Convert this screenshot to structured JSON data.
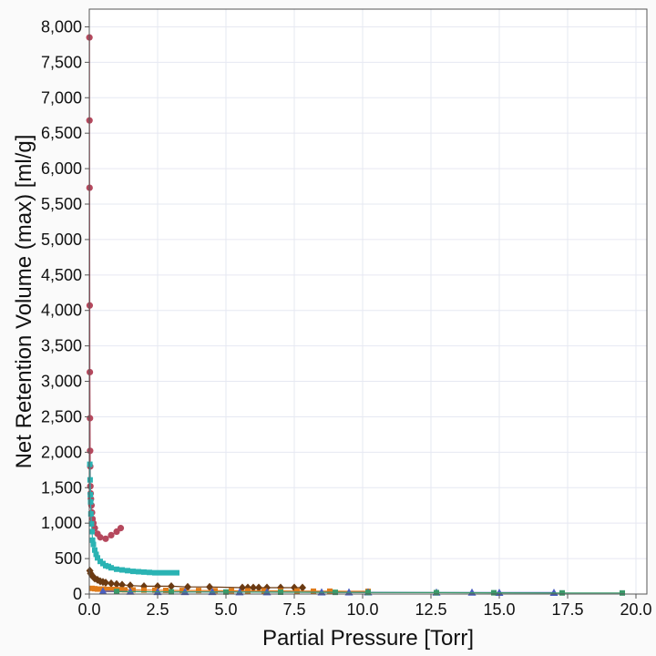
{
  "chart_data": {
    "type": "scatter",
    "xlabel": "Partial Pressure [Torr]",
    "ylabel": "Net Retention Volume (max) [ml/g]",
    "xlim": [
      0,
      20.4
    ],
    "ylim": [
      0,
      8250
    ],
    "x_ticks": [
      0,
      2.5,
      5,
      7.5,
      10,
      12.5,
      15,
      17.5,
      20
    ],
    "x_tick_labels": [
      "0.0",
      "2.5",
      "5.0",
      "7.5",
      "10.0",
      "12.5",
      "15.0",
      "17.5",
      "20.0"
    ],
    "y_ticks": [
      0,
      500,
      1000,
      1500,
      2000,
      2500,
      3000,
      3500,
      4000,
      4500,
      5000,
      5500,
      6000,
      6500,
      7000,
      7500,
      8000
    ],
    "y_tick_labels": [
      "0",
      "500",
      "1,000",
      "1,500",
      "2,000",
      "2,500",
      "3,000",
      "3,500",
      "4,000",
      "4,500",
      "5,000",
      "5,500",
      "6,000",
      "6,500",
      "7,000",
      "7,500",
      "8,000"
    ],
    "grid": true,
    "legend": "none",
    "series": [
      {
        "color": "#b5485d",
        "marker": "circle",
        "x": [
          0.005,
          0.007,
          0.01,
          0.015,
          0.02,
          0.025,
          0.03,
          0.035,
          0.04,
          0.05,
          0.06,
          0.08,
          0.1,
          0.12,
          0.15,
          0.2,
          0.3,
          0.4,
          0.6,
          0.8,
          1.0,
          1.15
        ],
        "y": [
          7850,
          6680,
          5730,
          4070,
          3130,
          2480,
          2020,
          1800,
          1520,
          1420,
          1340,
          1250,
          1150,
          1060,
          1000,
          930,
          850,
          800,
          780,
          830,
          880,
          930
        ]
      },
      {
        "color": "#2ab3b3",
        "marker": "square",
        "x": [
          0.02,
          0.03,
          0.04,
          0.05,
          0.06,
          0.08,
          0.1,
          0.12,
          0.15,
          0.2,
          0.25,
          0.3,
          0.4,
          0.5,
          0.6,
          0.7,
          0.8,
          1.0,
          1.2,
          1.4,
          1.6,
          1.8,
          2.0,
          2.2,
          2.4,
          2.6,
          2.8,
          3.0,
          3.2
        ],
        "y": [
          1830,
          1610,
          1400,
          1300,
          1130,
          990,
          880,
          760,
          700,
          620,
          560,
          510,
          460,
          430,
          400,
          390,
          370,
          350,
          340,
          330,
          320,
          315,
          310,
          305,
          300,
          300,
          300,
          300,
          300
        ]
      },
      {
        "color": "#6b3a12",
        "marker": "diamond",
        "x": [
          0.02,
          0.05,
          0.1,
          0.15,
          0.2,
          0.3,
          0.4,
          0.5,
          0.6,
          0.8,
          1.0,
          1.2,
          1.5,
          2.0,
          2.5,
          3.0,
          3.6,
          4.4,
          5.6,
          5.8,
          6.0,
          6.2,
          6.5,
          7.0,
          7.5,
          7.8
        ],
        "y": [
          330,
          290,
          260,
          240,
          220,
          200,
          180,
          170,
          160,
          150,
          140,
          130,
          120,
          110,
          110,
          110,
          100,
          100,
          90,
          90,
          90,
          90,
          90,
          90,
          90,
          90
        ]
      },
      {
        "color": "#e07b1a",
        "marker": "square",
        "x": [
          0.1,
          0.2,
          0.3,
          0.5,
          0.7,
          0.9,
          1.1,
          1.3,
          1.6,
          2.0,
          2.4,
          2.8,
          3.4,
          4.0,
          4.6,
          5.2,
          5.8,
          6.4,
          7.0,
          7.6,
          8.2,
          8.8,
          10.2
        ],
        "y": [
          80,
          75,
          70,
          70,
          65,
          65,
          62,
          60,
          58,
          55,
          55,
          52,
          50,
          50,
          48,
          46,
          45,
          45,
          44,
          42,
          40,
          40,
          38
        ]
      },
      {
        "color": "#4a5fc1",
        "marker": "triangle",
        "x": [
          0.5,
          1.5,
          2.5,
          3.5,
          4.5,
          5.5,
          6.5,
          8.5,
          9.5,
          10.2,
          12.7,
          14.0,
          15.0,
          17.0
        ],
        "y": [
          40,
          35,
          30,
          30,
          30,
          28,
          28,
          26,
          25,
          25,
          22,
          22,
          20,
          20
        ]
      },
      {
        "color": "#3a9a6a",
        "marker": "square",
        "x": [
          1.0,
          3.0,
          5.0,
          7.0,
          9.0,
          10.2,
          12.7,
          14.8,
          17.3,
          19.5
        ],
        "y": [
          35,
          30,
          28,
          26,
          24,
          22,
          20,
          18,
          16,
          15
        ]
      }
    ]
  }
}
